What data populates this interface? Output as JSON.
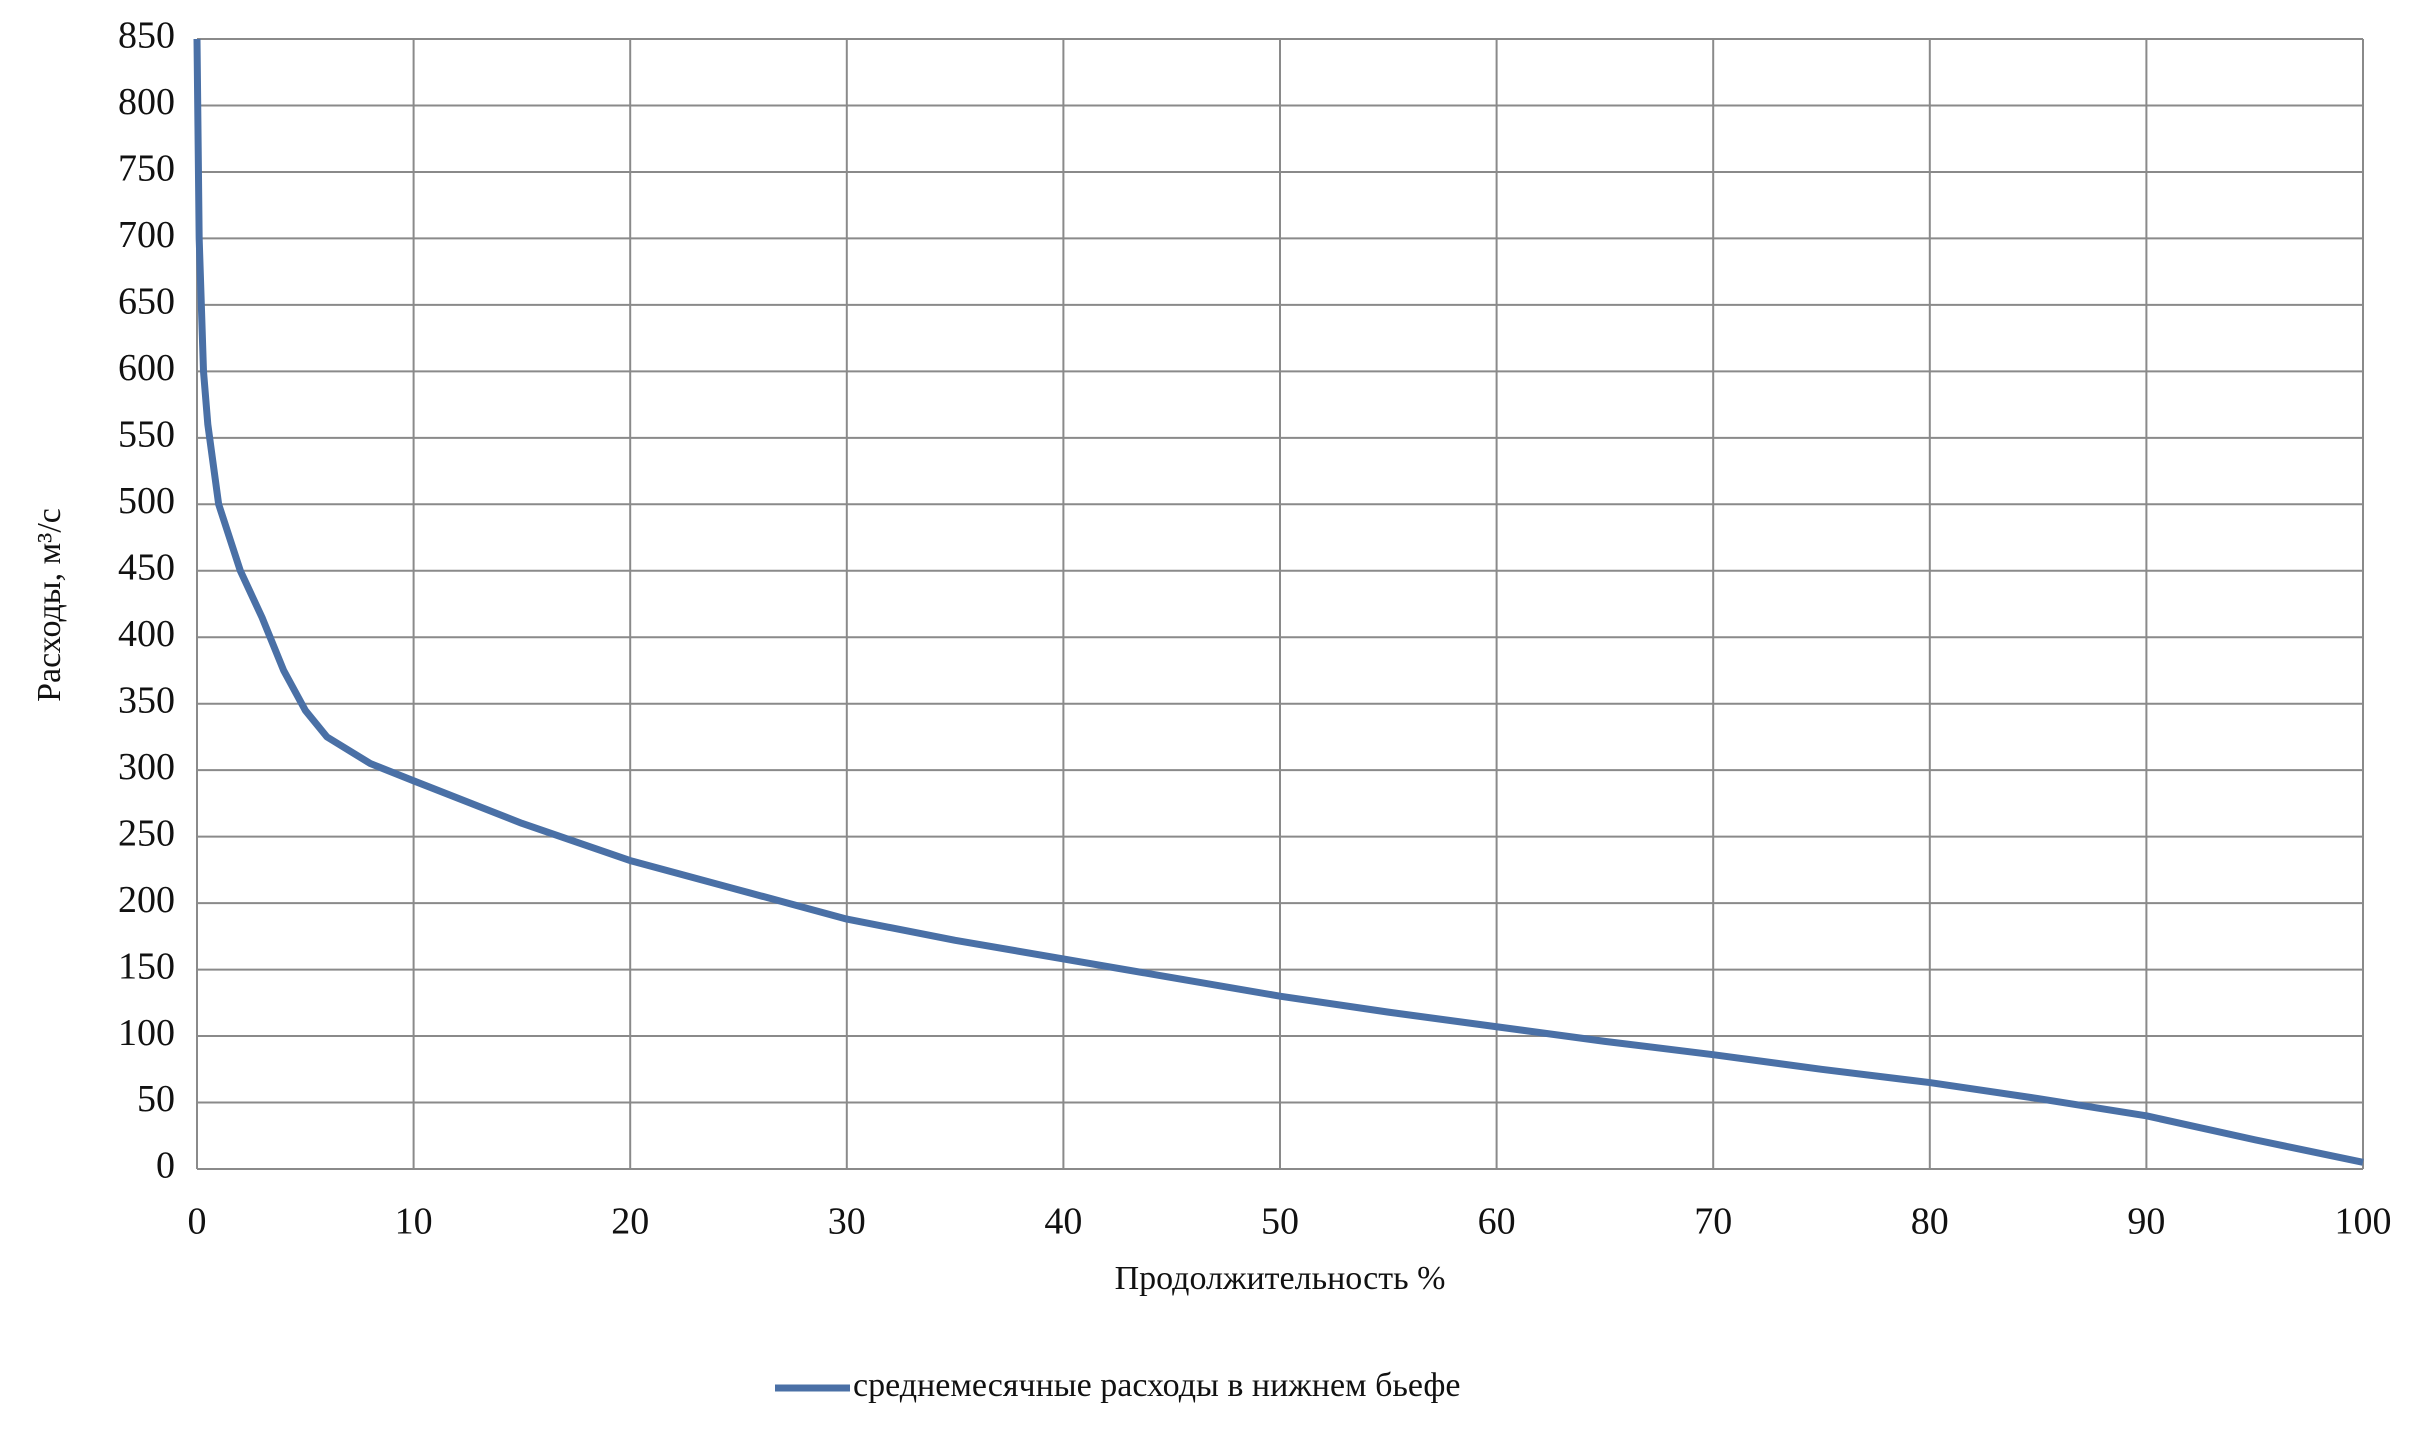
{
  "chart_data": {
    "type": "line",
    "x_label": "Продолжительность %",
    "y_label": "Расходы, м³/с",
    "x": [
      0,
      0.1,
      0.3,
      0.5,
      1,
      2,
      3,
      4,
      5,
      6,
      8,
      10,
      15,
      20,
      25,
      30,
      35,
      40,
      45,
      50,
      55,
      60,
      65,
      70,
      75,
      80,
      85,
      90,
      95,
      100
    ],
    "series": [
      {
        "name": "среднемесячные расходы в нижнем бьефе",
        "color": "#4a70a6",
        "values": [
          850,
          700,
          600,
          560,
          500,
          450,
          415,
          375,
          345,
          325,
          305,
          292,
          260,
          232,
          210,
          188,
          172,
          158,
          144,
          130,
          118,
          107,
          96,
          86,
          75,
          65,
          53,
          40,
          22,
          5
        ]
      }
    ],
    "xlim": [
      0,
      100
    ],
    "xticks": [
      0,
      10,
      20,
      30,
      40,
      50,
      60,
      70,
      80,
      90,
      100
    ],
    "ylim": [
      0,
      850
    ],
    "yticks": [
      0,
      50,
      100,
      150,
      200,
      250,
      300,
      350,
      400,
      450,
      500,
      550,
      600,
      650,
      700,
      750,
      800,
      850
    ],
    "grid": true,
    "legend": "bottom"
  }
}
